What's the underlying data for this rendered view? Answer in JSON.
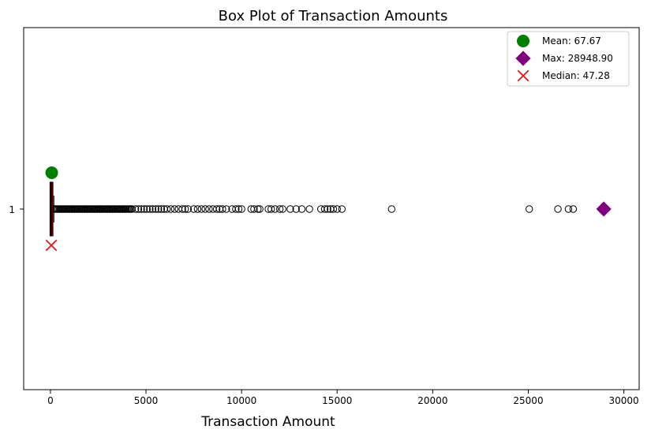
{
  "chart_data": {
    "type": "box",
    "title": "Box Plot of Transaction Amounts",
    "xlabel": "Transaction Amount",
    "ylabel": "",
    "xlim": [
      -1400,
      30800
    ],
    "xticks": [
      0,
      5000,
      10000,
      15000,
      20000,
      25000,
      30000
    ],
    "y_category": "1",
    "orientation": "horizontal",
    "grid": false,
    "legend_position": "top-right",
    "box": {
      "q1": 20,
      "median": 47.28,
      "q3": 90,
      "whisker_low": 0,
      "whisker_high": 180,
      "box_color": "#8b0000",
      "median_color": "#000000"
    },
    "dense_outlier_range": [
      180,
      4300
    ],
    "outliers": [
      4450,
      4600,
      4750,
      4900,
      5050,
      5200,
      5350,
      5500,
      5650,
      5800,
      5950,
      6100,
      6300,
      6500,
      6700,
      6900,
      7050,
      7200,
      7500,
      7700,
      7900,
      8100,
      8300,
      8500,
      8700,
      8850,
      9000,
      9200,
      9500,
      9700,
      9850,
      10000,
      10500,
      10650,
      10850,
      10950,
      11400,
      11550,
      11750,
      12000,
      12150,
      12550,
      12850,
      13150,
      13550,
      14150,
      14350,
      14500,
      14650,
      14800,
      15000,
      15250,
      17850,
      25050,
      26550,
      27100,
      27350,
      28948.9
    ],
    "markers": [
      {
        "label": "Mean: 67.67",
        "value": 67.67,
        "shape": "circle",
        "color": "#008000",
        "y_offset": 0.2
      },
      {
        "label": "Max: 28948.90",
        "value": 28948.9,
        "shape": "diamond",
        "color": "#800080",
        "y_offset": 0
      },
      {
        "label": "Median: 47.28",
        "value": 47.28,
        "shape": "x",
        "color": "#e31a1c",
        "y_offset": -0.2
      }
    ]
  }
}
